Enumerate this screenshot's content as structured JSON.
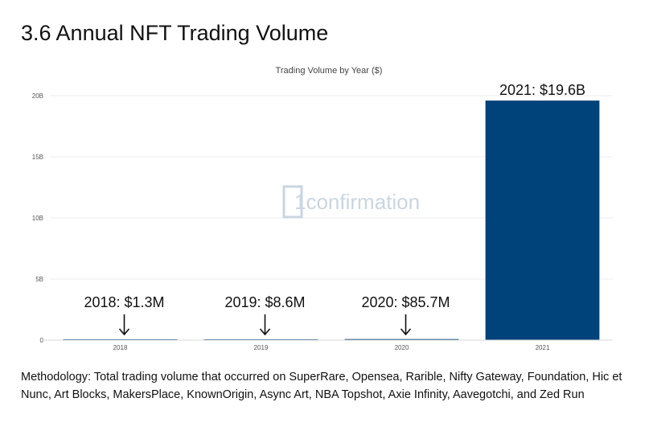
{
  "page_title": "3.6 Annual NFT Trading Volume",
  "methodology": "Methodology: Total trading volume that occurred on SuperRare, Opensea, Rarible, Nifty Gateway, Foundation, Hic et Nunc, Art Blocks,  MakersPlace, KnownOrigin, Async Art, NBA Topshot, Axie Infinity, Aavegotchi, and Zed Run",
  "watermark": "1confirmation",
  "chart_data": {
    "type": "bar",
    "title": "Trading Volume by Year ($)",
    "xlabel": "",
    "ylabel": "",
    "categories": [
      "2018",
      "2019",
      "2020",
      "2021"
    ],
    "values": [
      1300000,
      8600000,
      85700000,
      19600000000
    ],
    "ylim": [
      0,
      20000000000
    ],
    "yticks": [
      0,
      5000000000,
      10000000000,
      15000000000,
      20000000000
    ],
    "ytick_labels": [
      "0",
      "5B",
      "10B",
      "15B",
      "20B"
    ],
    "annotations": [
      "2018: $1.3M",
      "2019: $8.6M",
      "2020: $85.7M",
      "2021: $19.6B"
    ],
    "bar_color": "#00427a",
    "grid": true,
    "legend": false
  }
}
